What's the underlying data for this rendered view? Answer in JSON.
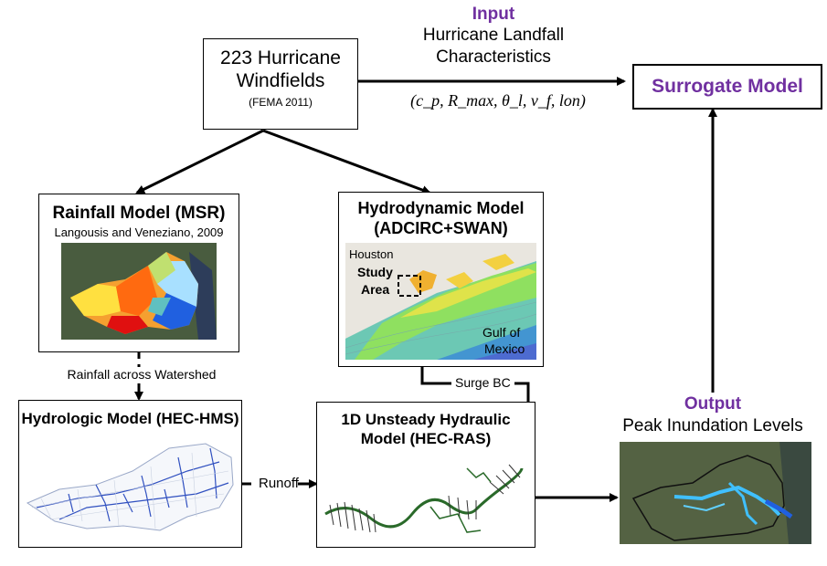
{
  "windfields": {
    "line1": "223 Hurricane",
    "line2": "Windfields",
    "source": "(FEMA 2011)"
  },
  "input": {
    "heading": "Input",
    "line1": "Hurricane Landfall",
    "line2": "Characteristics",
    "params": "(c_p, R_max, θ_l, v_f, lon)"
  },
  "surrogate": {
    "title": "Surrogate Model"
  },
  "rainfall": {
    "title": "Rainfall Model (MSR)",
    "citation": "Langousis and Veneziano, 2009"
  },
  "hydrodynamic": {
    "line1": "Hydrodynamic Model",
    "line2": "(ADCIRC+SWAN)",
    "map_labels": {
      "houston": "Houston",
      "study1": "Study",
      "study2": "Area",
      "gulf1": "Gulf of",
      "gulf2": "Mexico"
    }
  },
  "connectors": {
    "rainfall_across": "Rainfall across Watershed",
    "surge_bc": "Surge BC",
    "runoff": "Runoff"
  },
  "hydrologic": {
    "title": "Hydrologic Model (HEC-HMS)"
  },
  "hydraulic": {
    "line1": "1D Unsteady Hydraulic",
    "line2": "Model (HEC-RAS)"
  },
  "output": {
    "heading": "Output",
    "subtitle": "Peak Inundation Levels"
  },
  "colors": {
    "accent_purple": "#7030a0",
    "line": "#000000"
  }
}
